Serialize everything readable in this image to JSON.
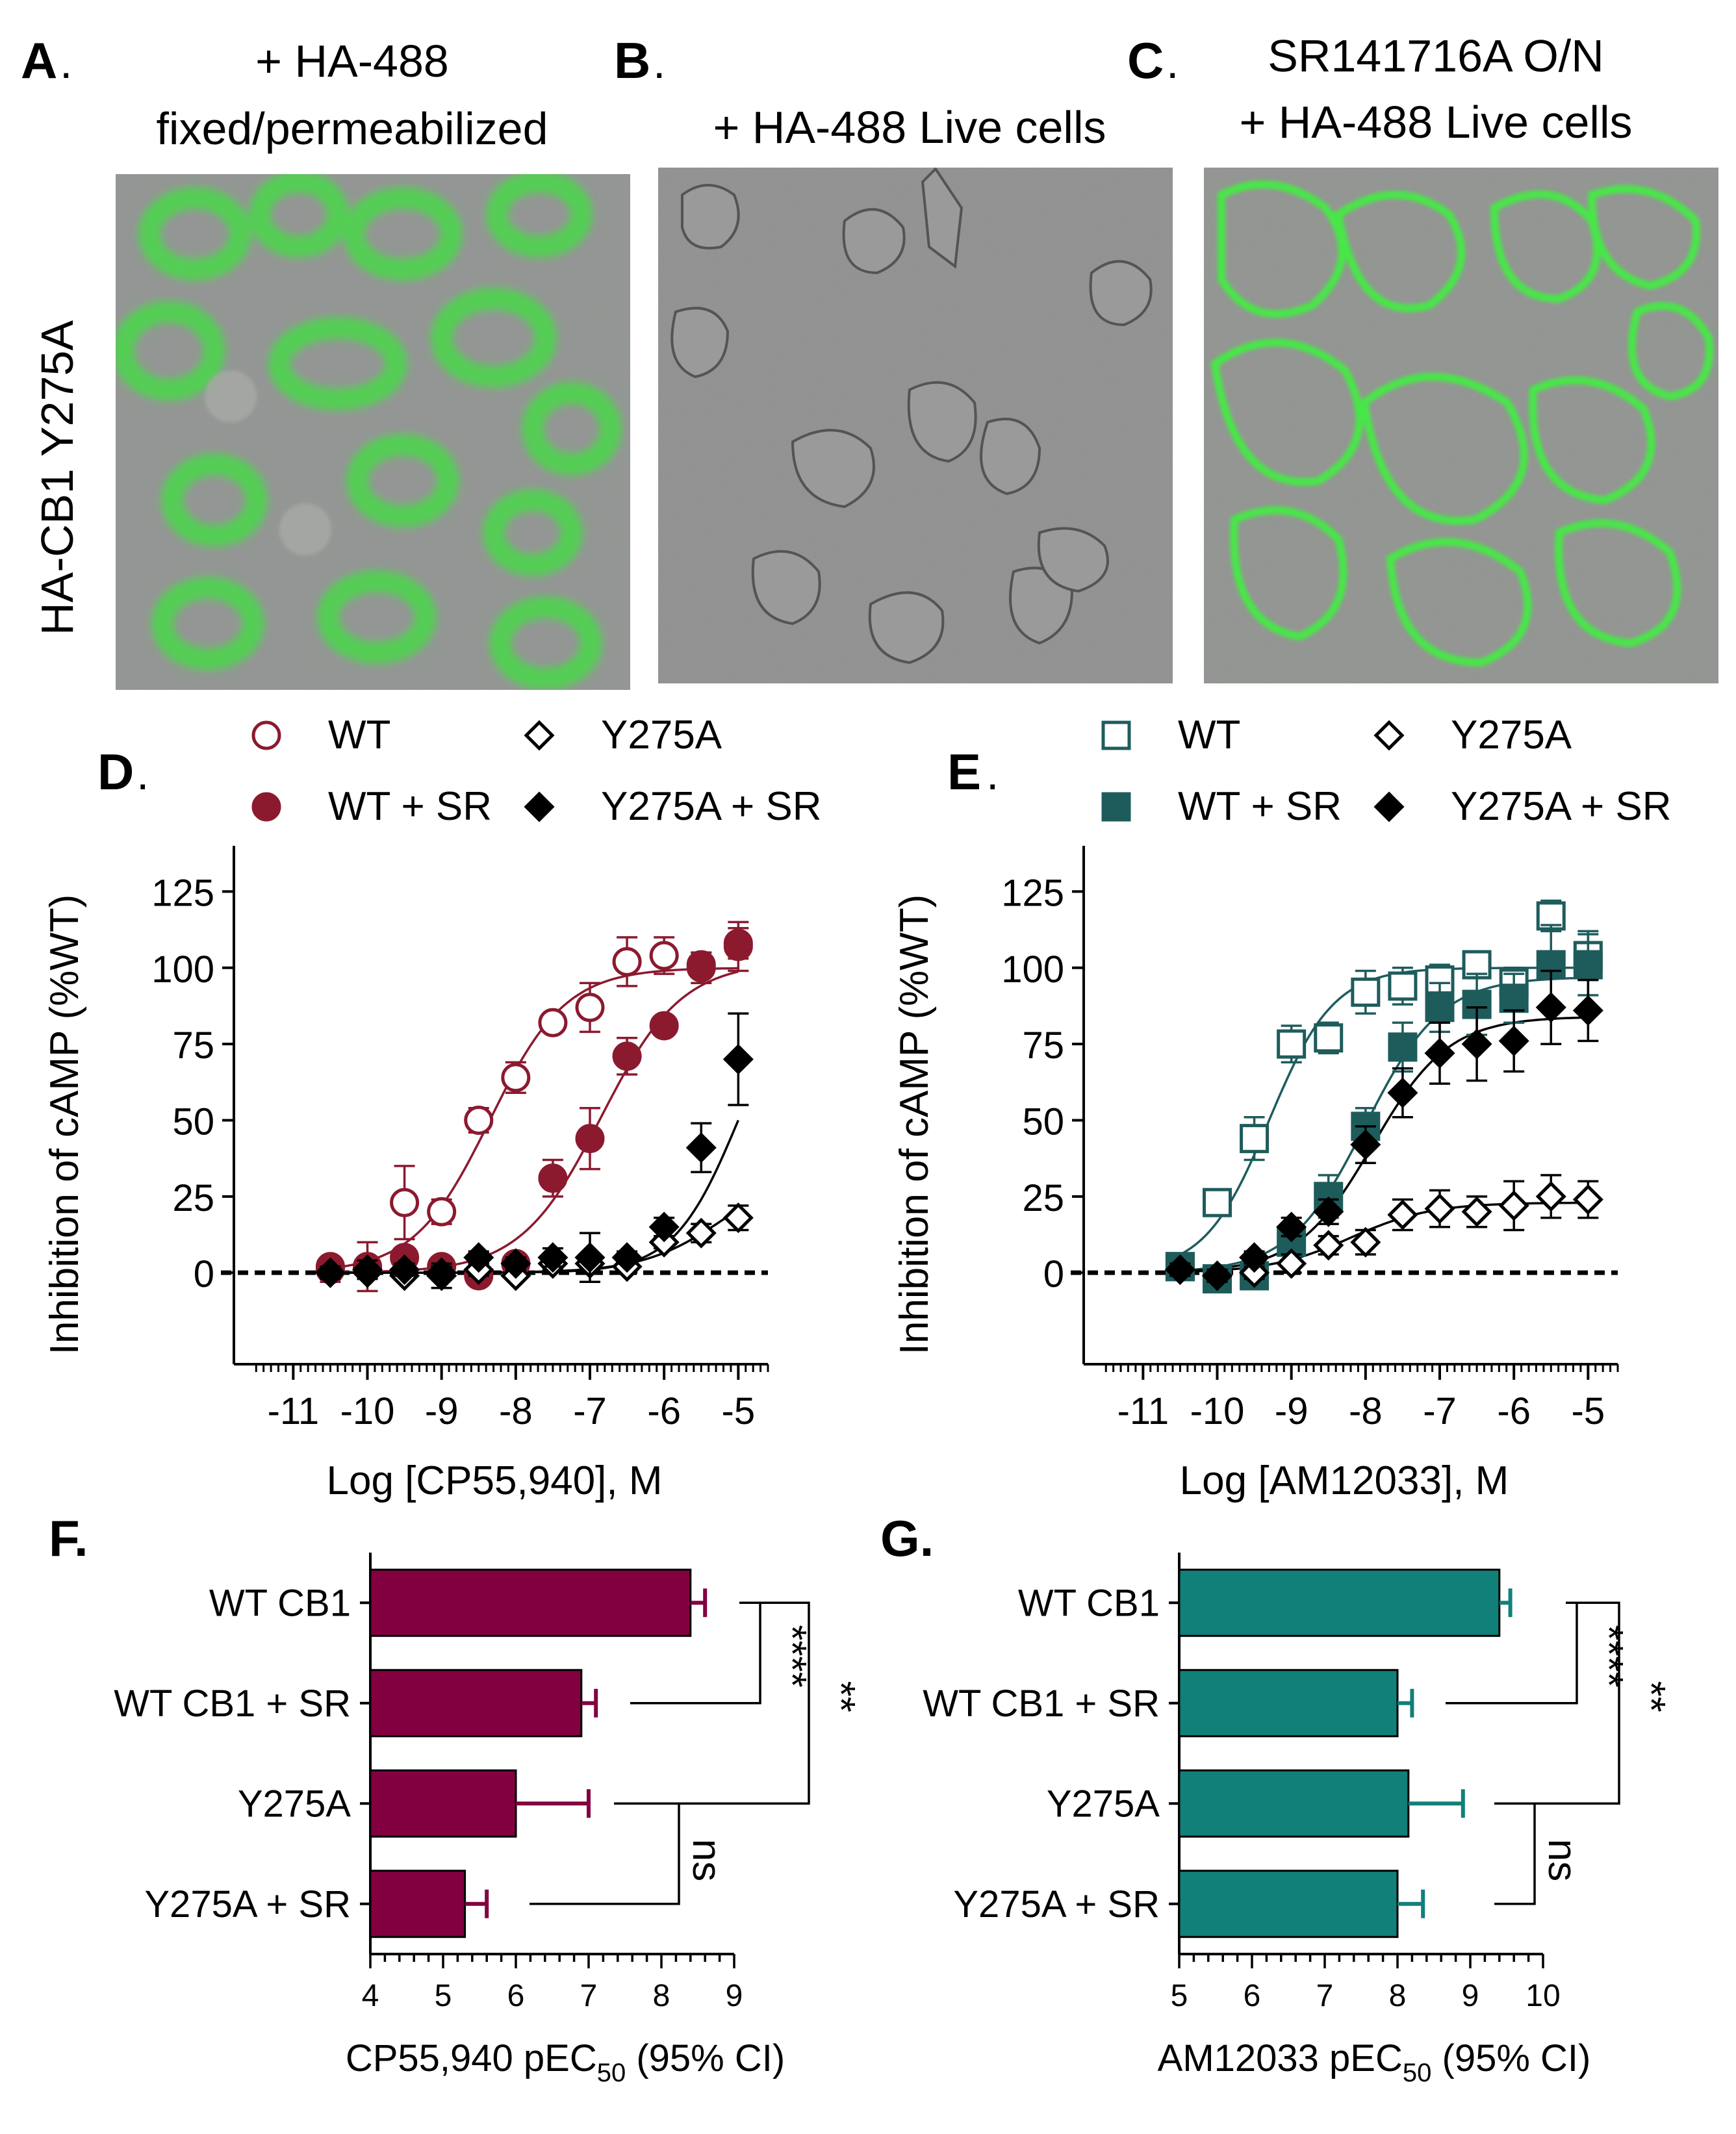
{
  "figure": {
    "row_label": "HA-CB1 Y275A",
    "micrographs": [
      {
        "letter": "A",
        "dot": ".",
        "caption_lines": [
          "+ HA-488",
          "fixed/permeabilized"
        ],
        "signal": "intracellular green stain"
      },
      {
        "letter": "B",
        "dot": ".",
        "caption_lines": [
          "+ HA-488 Live cells"
        ],
        "signal": "no stain"
      },
      {
        "letter": "C",
        "dot": ".",
        "caption_lines": [
          "SR141716A O/N",
          "+ HA-488 Live cells"
        ],
        "signal": "membrane green stain"
      }
    ],
    "colors": {
      "wt_maroon": "#8b1a2f",
      "wt_teal": "#1e5c5c",
      "bar_maroon": "#820040",
      "bar_teal": "#118079",
      "black": "#000000",
      "fluor_green": "#3ff03f"
    }
  },
  "chart_data": [
    {
      "panel": "D",
      "type": "scatter",
      "title": "",
      "xlabel": "Log [CP55,940], M",
      "ylabel": "Inhibition of cAMP (%WT)",
      "xlim": [
        -11.8,
        -4.6
      ],
      "ylim": [
        -30,
        140
      ],
      "xticks": [
        -11,
        -10,
        -9,
        -8,
        -7,
        -6,
        -5
      ],
      "yticks": [
        0,
        25,
        50,
        75,
        100,
        125
      ],
      "baseline": 0,
      "legend": [
        {
          "label": "WT",
          "series": 0
        },
        {
          "label": "Y275A",
          "series": 2
        },
        {
          "label": "WT + SR",
          "series": 1
        },
        {
          "label": "Y275A + SR",
          "series": 3
        }
      ],
      "series": [
        {
          "name": "WT",
          "marker": "circle-open",
          "color": "#8b1a2f",
          "x": [
            -10.5,
            -10,
            -9.5,
            -9,
            -8.5,
            -8,
            -7.5,
            -7,
            -6.5,
            -6,
            -5.5,
            -5
          ],
          "y": [
            2,
            2,
            23,
            20,
            50,
            64,
            82,
            87,
            102,
            104,
            100,
            108
          ],
          "err": [
            2,
            3,
            12,
            4,
            4,
            5,
            3,
            8,
            8,
            6,
            5,
            5
          ],
          "fit": {
            "bottom": 0,
            "top": 100,
            "logec50": -8.35,
            "hill": 0.85
          }
        },
        {
          "name": "WT + SR",
          "marker": "circle-filled",
          "color": "#8b1a2f",
          "x": [
            -10.5,
            -10,
            -9.5,
            -9,
            -8.5,
            -8,
            -7.5,
            -7,
            -6.5,
            -6,
            -5.5,
            -5
          ],
          "y": [
            1,
            2,
            5,
            2,
            -1,
            3,
            31,
            44,
            71,
            81,
            101,
            107
          ],
          "err": [
            4,
            8,
            3,
            3,
            3,
            2,
            6,
            10,
            6,
            3,
            4,
            8
          ],
          "fit": {
            "bottom": 0,
            "top": 102,
            "logec50": -6.85,
            "hill": 0.8
          }
        },
        {
          "name": "Y275A",
          "marker": "diamond-open",
          "color": "#000000",
          "x": [
            -10.5,
            -10,
            -9.5,
            -9,
            -8.5,
            -8,
            -7.5,
            -7,
            -6.5,
            -6,
            -5.5,
            -5
          ],
          "y": [
            0,
            0,
            -1,
            0,
            1,
            -1,
            3,
            3,
            2,
            10,
            13,
            18
          ],
          "err": [
            2,
            2,
            1,
            2,
            2,
            1,
            2,
            2,
            2,
            2,
            3,
            4
          ],
          "fit": {
            "bottom": 0,
            "top": 35,
            "logec50": -5.2,
            "hill": 0.8
          }
        },
        {
          "name": "Y275A + SR",
          "marker": "diamond-filled",
          "color": "#000000",
          "x": [
            -10.5,
            -10,
            -9.5,
            -9,
            -8.5,
            -8,
            -7.5,
            -7,
            -6.5,
            -6,
            -5.5,
            -5
          ],
          "y": [
            0,
            1,
            1,
            -1,
            5,
            3,
            5,
            5,
            5,
            15,
            41,
            70
          ],
          "err": [
            1,
            3,
            2,
            4,
            2,
            2,
            3,
            8,
            2,
            3,
            8,
            15
          ],
          "fit": {
            "bottom": 0,
            "top": 100,
            "logec50": -5.0,
            "hill": 1.0
          }
        }
      ]
    },
    {
      "panel": "E",
      "type": "scatter",
      "title": "",
      "xlabel": "Log [AM12033], M",
      "ylabel": "Inhibition of cAMP (%WT)",
      "xlim": [
        -11.8,
        -4.6
      ],
      "ylim": [
        -30,
        140
      ],
      "xticks": [
        -11,
        -10,
        -9,
        -8,
        -7,
        -6,
        -5
      ],
      "yticks": [
        0,
        25,
        50,
        75,
        100,
        125
      ],
      "baseline": 0,
      "legend": [
        {
          "label": "WT",
          "series": 0
        },
        {
          "label": "Y275A",
          "series": 2
        },
        {
          "label": "WT + SR",
          "series": 1
        },
        {
          "label": "Y275A + SR",
          "series": 3
        }
      ],
      "series": [
        {
          "name": "WT",
          "marker": "square-open",
          "color": "#1e5c5c",
          "x": [
            -10.5,
            -10,
            -9.5,
            -9,
            -8.5,
            -8,
            -7.5,
            -7,
            -6.5,
            -6,
            -5.5,
            -5
          ],
          "y": [
            2,
            23,
            44,
            75,
            77,
            92,
            94,
            96,
            101,
            95,
            117,
            104
          ],
          "err": [
            3,
            4,
            7,
            6,
            5,
            7,
            6,
            5,
            4,
            5,
            5,
            8
          ],
          "fit": {
            "bottom": 0,
            "top": 100,
            "logec50": -9.3,
            "hill": 1.0
          }
        },
        {
          "name": "WT + SR",
          "marker": "square-filled",
          "color": "#1e5c5c",
          "x": [
            -10.5,
            -10,
            -9.5,
            -9,
            -8.5,
            -8,
            -7.5,
            -7,
            -6.5,
            -6,
            -5.5,
            -5
          ],
          "y": [
            2,
            -2,
            -1,
            10,
            25,
            48,
            74,
            87,
            88,
            90,
            101,
            101
          ],
          "err": [
            3,
            2,
            2,
            4,
            7,
            6,
            8,
            8,
            10,
            8,
            13,
            10
          ],
          "fit": {
            "bottom": 0,
            "top": 97,
            "logec50": -8.0,
            "hill": 0.85
          }
        },
        {
          "name": "Y275A",
          "marker": "diamond-open",
          "color": "#000000",
          "x": [
            -10.5,
            -10,
            -9.5,
            -9,
            -8.5,
            -8,
            -7.5,
            -7,
            -6.5,
            -6,
            -5.5,
            -5
          ],
          "y": [
            1,
            -1,
            0,
            3,
            9,
            10,
            19,
            21,
            20,
            22,
            25,
            24
          ],
          "err": [
            2,
            2,
            2,
            3,
            3,
            4,
            5,
            6,
            5,
            8,
            7,
            6
          ],
          "fit": {
            "bottom": 0,
            "top": 23,
            "logec50": -8.2,
            "hill": 0.8
          }
        },
        {
          "name": "Y275A + SR",
          "marker": "diamond-filled",
          "color": "#000000",
          "x": [
            -10.5,
            -10,
            -9.5,
            -9,
            -8.5,
            -8,
            -7.5,
            -7,
            -6.5,
            -6,
            -5.5,
            -5
          ],
          "y": [
            1,
            -1,
            5,
            15,
            20,
            42,
            59,
            72,
            75,
            76,
            87,
            86
          ],
          "err": [
            2,
            2,
            2,
            3,
            4,
            6,
            8,
            10,
            12,
            10,
            12,
            10
          ],
          "fit": {
            "bottom": 0,
            "top": 84,
            "logec50": -7.9,
            "hill": 0.85
          }
        }
      ]
    },
    {
      "panel": "F",
      "type": "bar",
      "orientation": "horizontal",
      "xlabel_main": "CP55,940 pEC",
      "xlabel_sub": "50",
      "xlabel_tail": " (95% CI)",
      "xlim": [
        4,
        9
      ],
      "xticks": [
        4,
        5,
        6,
        7,
        8,
        9
      ],
      "color": "#820040",
      "categories": [
        "WT CB1",
        "WT CB1 + SR",
        "Y275A",
        "Y275A + SR"
      ],
      "values": [
        8.4,
        6.9,
        6.0,
        5.3
      ],
      "ci_upper": [
        8.6,
        7.1,
        7.0,
        5.6
      ],
      "comparisons": [
        {
          "from": 0,
          "to": 1,
          "label": "****"
        },
        {
          "from": 0,
          "to": 2,
          "label": "**"
        },
        {
          "from": 2,
          "to": 3,
          "label": "ns"
        }
      ]
    },
    {
      "panel": "G",
      "type": "bar",
      "orientation": "horizontal",
      "xlabel_main": "AM12033 pEC",
      "xlabel_sub": "50",
      "xlabel_tail": " (95% CI)",
      "xlim": [
        5,
        10
      ],
      "xticks": [
        5,
        6,
        7,
        8,
        9,
        10
      ],
      "color": "#118079",
      "categories": [
        "WT CB1",
        "WT CB1 + SR",
        "Y275A",
        "Y275A + SR"
      ],
      "values": [
        9.4,
        8.0,
        8.15,
        8.0
      ],
      "ci_upper": [
        9.55,
        8.2,
        8.9,
        8.35
      ],
      "comparisons": [
        {
          "from": 0,
          "to": 1,
          "label": "****"
        },
        {
          "from": 0,
          "to": 2,
          "label": "**"
        },
        {
          "from": 2,
          "to": 3,
          "label": "ns"
        }
      ]
    }
  ]
}
